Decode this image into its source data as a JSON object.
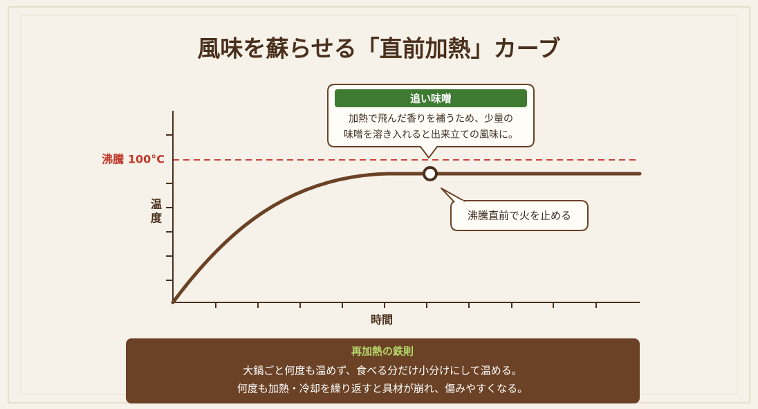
{
  "title": "風味を蘇らせる「直前加熱」カーブ",
  "diagram": {
    "boiling_label": "沸騰 100°C",
    "y_label": [
      "温",
      "度"
    ],
    "x_label": "時間",
    "callout_top": {
      "header": "追い味噌",
      "lines": [
        "加熱で飛んだ香りを補うため、少量の",
        "味噌を溶き入れると出来立ての風味に。"
      ]
    },
    "callout_side": "沸騰直前で火を止める"
  },
  "rule": {
    "title": "再加熱の鉄則",
    "lines": [
      "大鍋ごと何度も温めず、食べる分だけ小分けにして温める。",
      "何度も加熱・冷却を繰り返すと具材が崩れ、傷みやすくなる。"
    ]
  }
}
